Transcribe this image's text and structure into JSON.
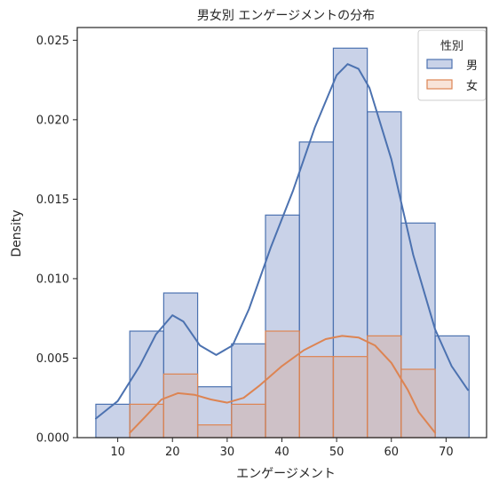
{
  "chart_data": {
    "type": "histogram-kde",
    "title": "男女別 エンゲージメントの分布",
    "xlabel": "エンゲージメント",
    "ylabel": "Density",
    "xlim": [
      2.6,
      77.4
    ],
    "ylim": [
      0,
      0.0258
    ],
    "xticks": [
      10,
      20,
      30,
      40,
      50,
      60,
      70
    ],
    "yticks": [
      0.0,
      0.005,
      0.01,
      0.015,
      0.02,
      0.025
    ],
    "ytick_labels": [
      "0.000",
      "0.005",
      "0.010",
      "0.015",
      "0.020",
      "0.025"
    ],
    "grid": false,
    "legend": {
      "title": "性別",
      "placement": "top-right"
    },
    "series": [
      {
        "name": "男",
        "color": "#4C72B0",
        "fill": "#c9d2e8",
        "bins": [
          {
            "x0": 6.0,
            "x1": 12.2,
            "y": 0.0021
          },
          {
            "x0": 12.2,
            "x1": 18.4,
            "y": 0.0067
          },
          {
            "x0": 18.4,
            "x1": 24.6,
            "y": 0.0091
          },
          {
            "x0": 24.6,
            "x1": 30.8,
            "y": 0.0032
          },
          {
            "x0": 30.8,
            "x1": 37.0,
            "y": 0.0059
          },
          {
            "x0": 37.0,
            "x1": 43.2,
            "y": 0.014
          },
          {
            "x0": 43.2,
            "x1": 49.4,
            "y": 0.0186
          },
          {
            "x0": 49.4,
            "x1": 55.6,
            "y": 0.0245
          },
          {
            "x0": 55.6,
            "x1": 61.8,
            "y": 0.0205
          },
          {
            "x0": 61.8,
            "x1": 68.0,
            "y": 0.0135
          },
          {
            "x0": 68.0,
            "x1": 74.2,
            "y": 0.0064
          }
        ],
        "kde": [
          [
            6,
            0.0012
          ],
          [
            10,
            0.0023
          ],
          [
            14,
            0.0045
          ],
          [
            17,
            0.0065
          ],
          [
            20,
            0.0077
          ],
          [
            22,
            0.0073
          ],
          [
            25,
            0.0058
          ],
          [
            28,
            0.0052
          ],
          [
            31,
            0.0058
          ],
          [
            34,
            0.0081
          ],
          [
            38,
            0.012
          ],
          [
            42,
            0.0155
          ],
          [
            46,
            0.0195
          ],
          [
            50,
            0.0228
          ],
          [
            52,
            0.0235
          ],
          [
            54,
            0.0232
          ],
          [
            56,
            0.022
          ],
          [
            60,
            0.0175
          ],
          [
            64,
            0.0115
          ],
          [
            68,
            0.0068
          ],
          [
            71,
            0.0045
          ],
          [
            74,
            0.003
          ]
        ]
      },
      {
        "name": "女",
        "color": "#DD8452",
        "fill": "rgba(221,132,82,0.22)",
        "bins": [
          {
            "x0": 12.2,
            "x1": 18.4,
            "y": 0.0021
          },
          {
            "x0": 18.4,
            "x1": 24.6,
            "y": 0.004
          },
          {
            "x0": 24.6,
            "x1": 30.8,
            "y": 0.0008
          },
          {
            "x0": 30.8,
            "x1": 37.0,
            "y": 0.0021
          },
          {
            "x0": 37.0,
            "x1": 43.2,
            "y": 0.0067
          },
          {
            "x0": 43.2,
            "x1": 49.4,
            "y": 0.0051
          },
          {
            "x0": 49.4,
            "x1": 55.6,
            "y": 0.0051
          },
          {
            "x0": 55.6,
            "x1": 61.8,
            "y": 0.0064
          },
          {
            "x0": 61.8,
            "x1": 68.0,
            "y": 0.0043
          }
        ],
        "kde": [
          [
            12.2,
            0.0003
          ],
          [
            15,
            0.0013
          ],
          [
            18,
            0.0024
          ],
          [
            21,
            0.0028
          ],
          [
            24,
            0.0027
          ],
          [
            27,
            0.0024
          ],
          [
            30,
            0.0022
          ],
          [
            33,
            0.0025
          ],
          [
            36,
            0.0033
          ],
          [
            40,
            0.0045
          ],
          [
            44,
            0.0055
          ],
          [
            48,
            0.0062
          ],
          [
            51,
            0.0064
          ],
          [
            54,
            0.0063
          ],
          [
            57,
            0.0058
          ],
          [
            60,
            0.0047
          ],
          [
            63,
            0.003
          ],
          [
            65,
            0.0016
          ],
          [
            68,
            0.0003
          ]
        ]
      }
    ]
  }
}
